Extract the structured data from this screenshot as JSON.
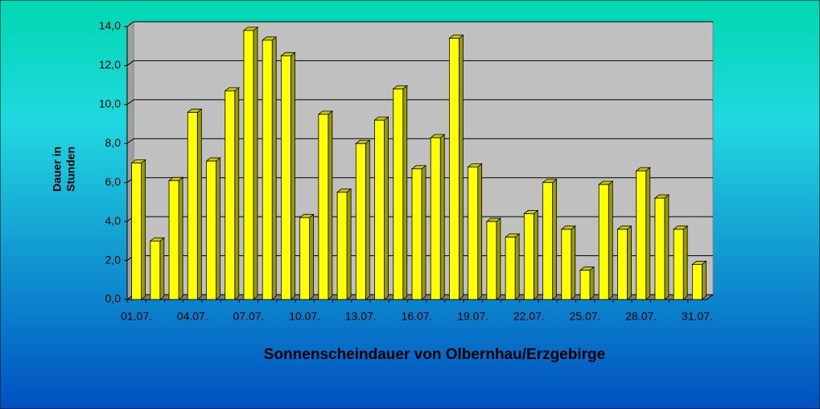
{
  "chart_data": {
    "type": "bar3d",
    "title": "Sonnenscheindauer von Olbernhau/Erzgebirge",
    "ylabel": "Dauer in Stunden",
    "categories": [
      "01.07.",
      null,
      null,
      "04.07.",
      null,
      null,
      "07.07.",
      null,
      null,
      "10.07.",
      null,
      null,
      "13.07.",
      null,
      null,
      "16.07.",
      null,
      null,
      "19.07.",
      null,
      null,
      "22.07.",
      null,
      null,
      "25.07.",
      null,
      null,
      "28.07.",
      null,
      null,
      "31.07."
    ],
    "values": [
      7.0,
      3.0,
      6.1,
      9.6,
      7.1,
      10.7,
      13.8,
      13.3,
      12.5,
      4.2,
      9.5,
      5.5,
      8.0,
      9.2,
      10.8,
      6.7,
      8.3,
      13.4,
      6.8,
      4.0,
      3.2,
      4.4,
      6.0,
      3.6,
      1.5,
      5.9,
      3.6,
      6.6,
      5.2,
      3.6,
      1.8
    ],
    "color": "#ffff00",
    "ylim": [
      0,
      14
    ],
    "yticks": [
      {
        "value": 0,
        "label": "0,0"
      },
      {
        "value": 2,
        "label": "2,0"
      },
      {
        "value": 4,
        "label": "4,0"
      },
      {
        "value": 6,
        "label": "6,0"
      },
      {
        "value": 8,
        "label": "8,0"
      },
      {
        "value": 10,
        "label": "10,0"
      },
      {
        "value": 12,
        "label": "12,0"
      },
      {
        "value": 14,
        "label": "14,0"
      }
    ],
    "grid": true
  }
}
